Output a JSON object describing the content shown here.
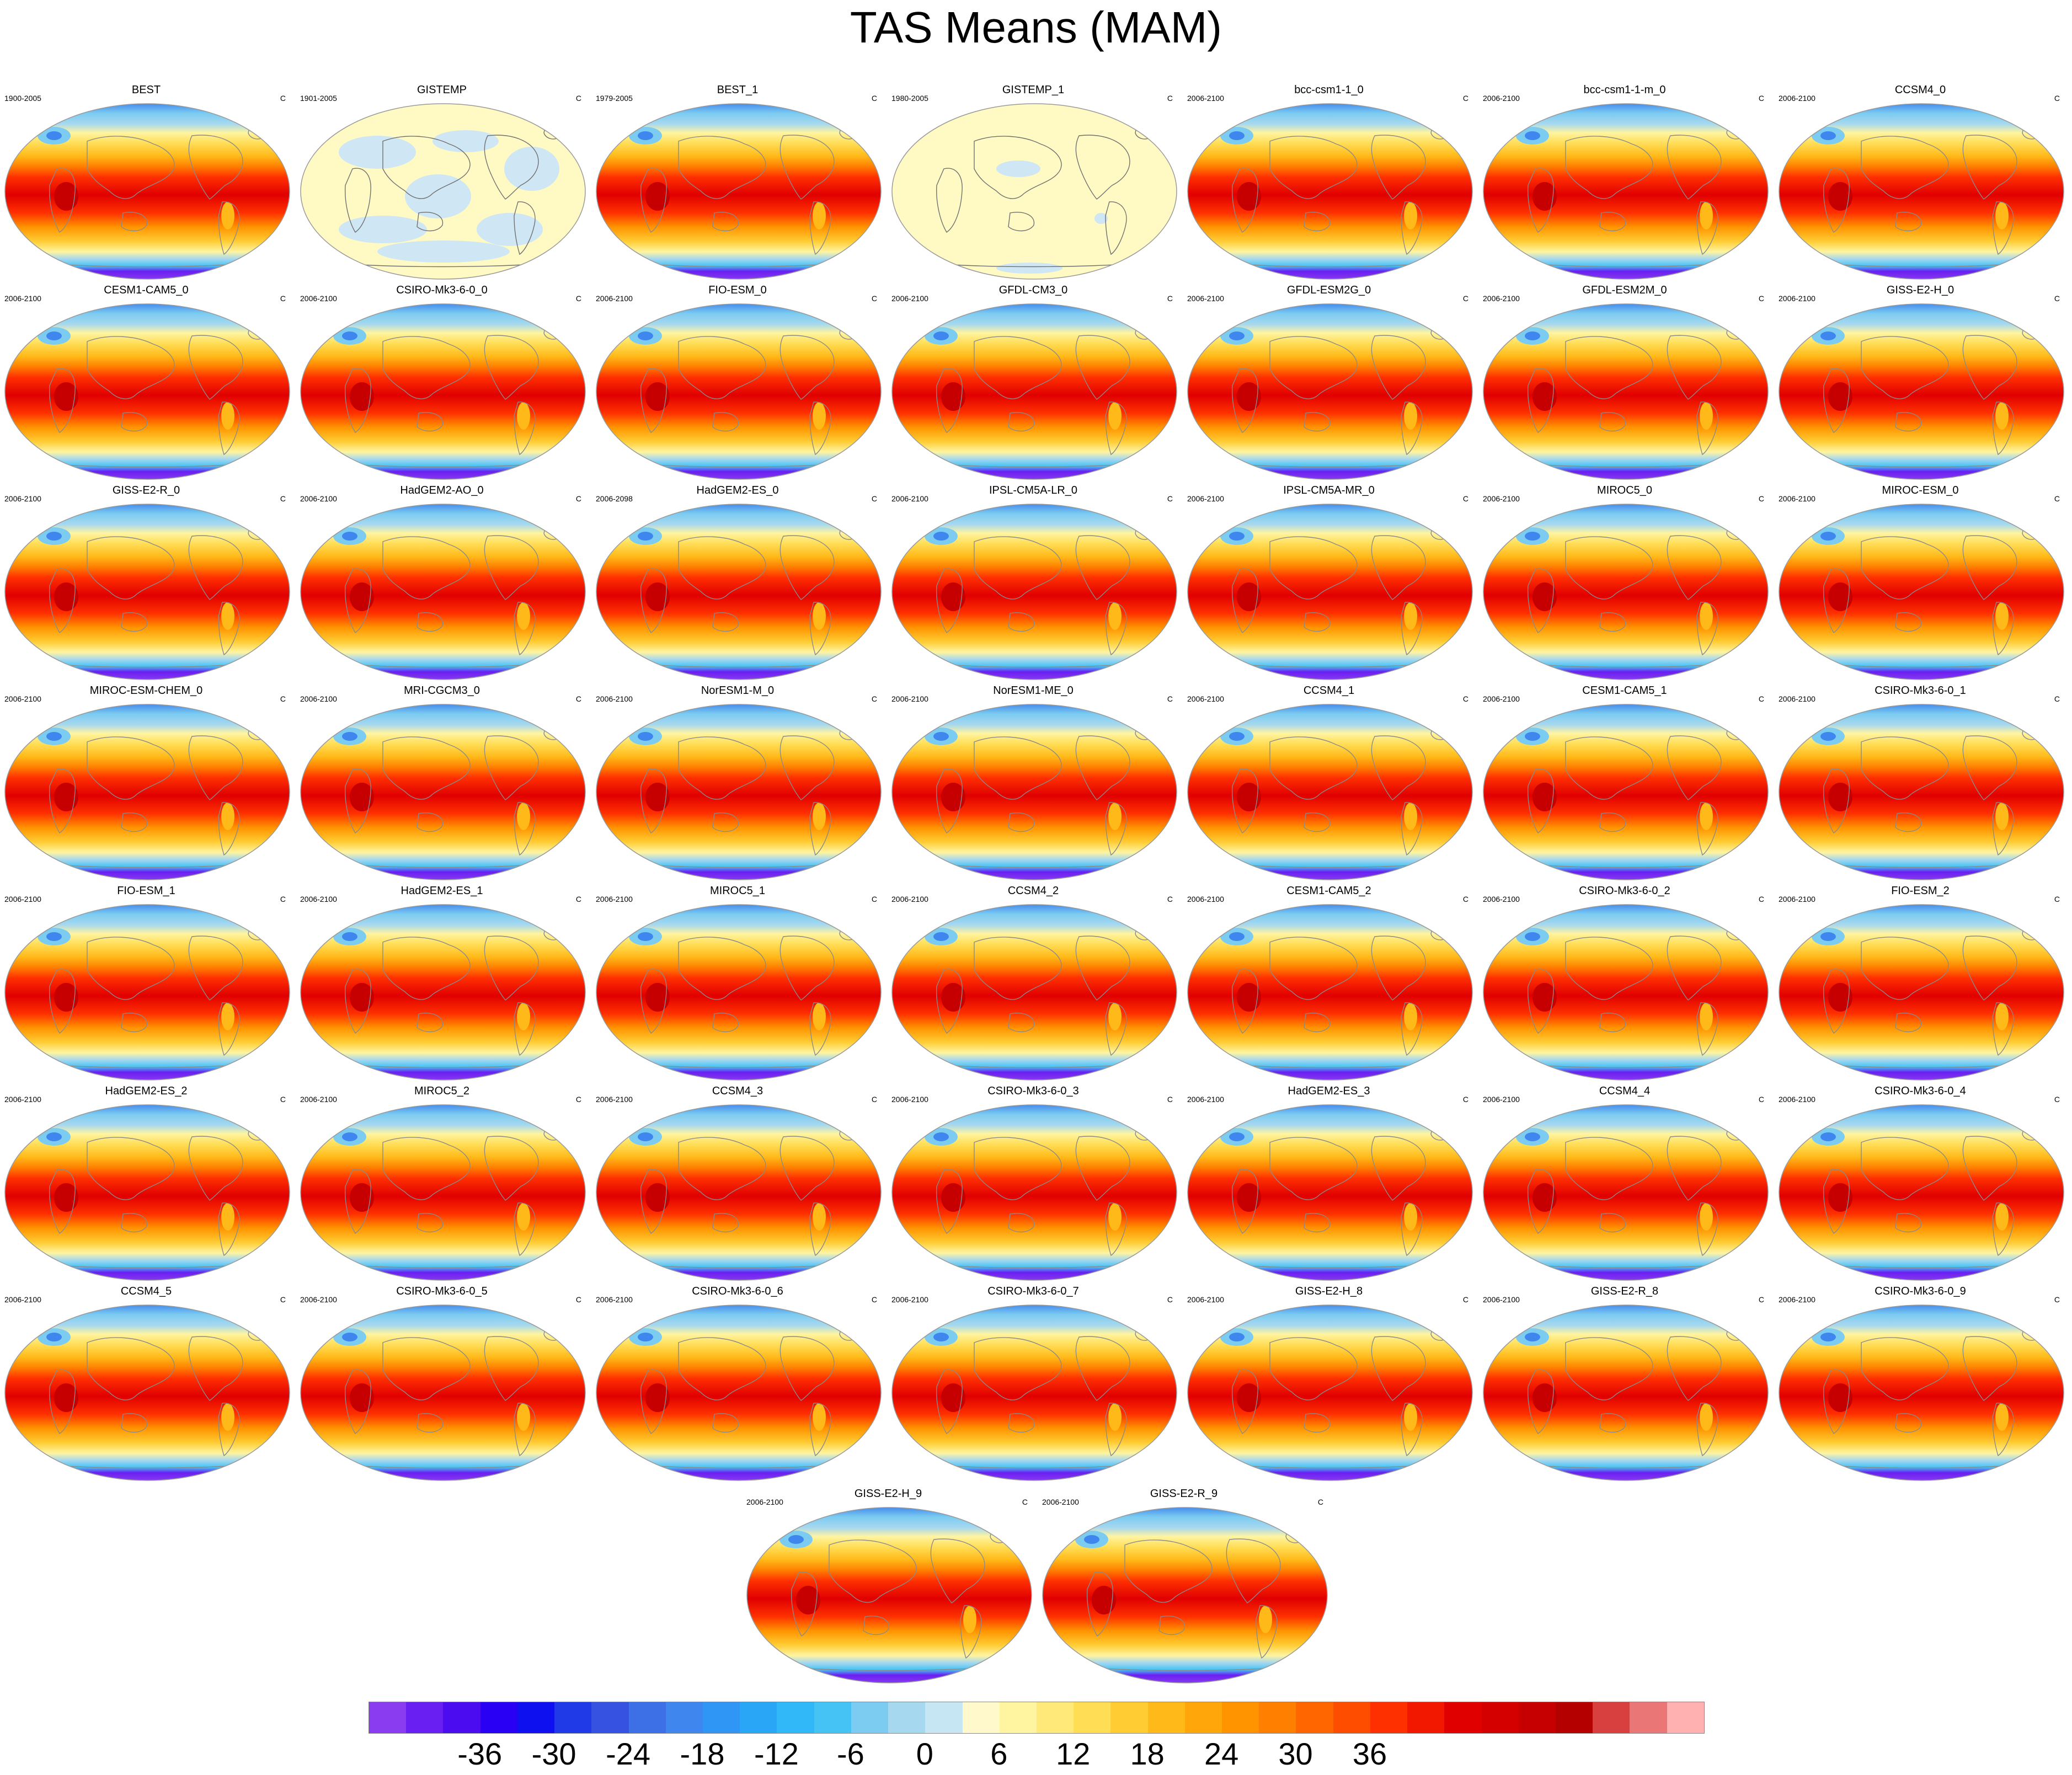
{
  "title": "TAS Means (MAM)",
  "unit": "C",
  "panels": [
    {
      "name": "BEST",
      "years": "1900-2005",
      "style": "model"
    },
    {
      "name": "GISTEMP",
      "years": "1901-2005",
      "style": "anom"
    },
    {
      "name": "BEST_1",
      "years": "1979-2005",
      "style": "model"
    },
    {
      "name": "GISTEMP_1",
      "years": "1980-2005",
      "style": "anom2"
    },
    {
      "name": "bcc-csm1-1_0",
      "years": "2006-2100",
      "style": "model"
    },
    {
      "name": "bcc-csm1-1-m_0",
      "years": "2006-2100",
      "style": "model"
    },
    {
      "name": "CCSM4_0",
      "years": "2006-2100",
      "style": "model"
    },
    {
      "name": "CESM1-CAM5_0",
      "years": "2006-2100",
      "style": "model"
    },
    {
      "name": "CSIRO-Mk3-6-0_0",
      "years": "2006-2100",
      "style": "model"
    },
    {
      "name": "FIO-ESM_0",
      "years": "2006-2100",
      "style": "model"
    },
    {
      "name": "GFDL-CM3_0",
      "years": "2006-2100",
      "style": "model"
    },
    {
      "name": "GFDL-ESM2G_0",
      "years": "2006-2100",
      "style": "model"
    },
    {
      "name": "GFDL-ESM2M_0",
      "years": "2006-2100",
      "style": "model"
    },
    {
      "name": "GISS-E2-H_0",
      "years": "2006-2100",
      "style": "model"
    },
    {
      "name": "GISS-E2-R_0",
      "years": "2006-2100",
      "style": "model"
    },
    {
      "name": "HadGEM2-AO_0",
      "years": "2006-2100",
      "style": "model"
    },
    {
      "name": "HadGEM2-ES_0",
      "years": "2006-2098",
      "style": "model"
    },
    {
      "name": "IPSL-CM5A-LR_0",
      "years": "2006-2100",
      "style": "model"
    },
    {
      "name": "IPSL-CM5A-MR_0",
      "years": "2006-2100",
      "style": "model"
    },
    {
      "name": "MIROC5_0",
      "years": "2006-2100",
      "style": "model"
    },
    {
      "name": "MIROC-ESM_0",
      "years": "2006-2100",
      "style": "model"
    },
    {
      "name": "MIROC-ESM-CHEM_0",
      "years": "2006-2100",
      "style": "model"
    },
    {
      "name": "MRI-CGCM3_0",
      "years": "2006-2100",
      "style": "model"
    },
    {
      "name": "NorESM1-M_0",
      "years": "2006-2100",
      "style": "model"
    },
    {
      "name": "NorESM1-ME_0",
      "years": "2006-2100",
      "style": "model"
    },
    {
      "name": "CCSM4_1",
      "years": "2006-2100",
      "style": "model"
    },
    {
      "name": "CESM1-CAM5_1",
      "years": "2006-2100",
      "style": "model"
    },
    {
      "name": "CSIRO-Mk3-6-0_1",
      "years": "2006-2100",
      "style": "model"
    },
    {
      "name": "FIO-ESM_1",
      "years": "2006-2100",
      "style": "model"
    },
    {
      "name": "HadGEM2-ES_1",
      "years": "2006-2100",
      "style": "model"
    },
    {
      "name": "MIROC5_1",
      "years": "2006-2100",
      "style": "model"
    },
    {
      "name": "CCSM4_2",
      "years": "2006-2100",
      "style": "model"
    },
    {
      "name": "CESM1-CAM5_2",
      "years": "2006-2100",
      "style": "model"
    },
    {
      "name": "CSIRO-Mk3-6-0_2",
      "years": "2006-2100",
      "style": "model"
    },
    {
      "name": "FIO-ESM_2",
      "years": "2006-2100",
      "style": "model"
    },
    {
      "name": "HadGEM2-ES_2",
      "years": "2006-2100",
      "style": "model"
    },
    {
      "name": "MIROC5_2",
      "years": "2006-2100",
      "style": "model"
    },
    {
      "name": "CCSM4_3",
      "years": "2006-2100",
      "style": "model"
    },
    {
      "name": "CSIRO-Mk3-6-0_3",
      "years": "2006-2100",
      "style": "model"
    },
    {
      "name": "HadGEM2-ES_3",
      "years": "2006-2100",
      "style": "model"
    },
    {
      "name": "CCSM4_4",
      "years": "2006-2100",
      "style": "model"
    },
    {
      "name": "CSIRO-Mk3-6-0_4",
      "years": "2006-2100",
      "style": "model"
    },
    {
      "name": "CCSM4_5",
      "years": "2006-2100",
      "style": "model"
    },
    {
      "name": "CSIRO-Mk3-6-0_5",
      "years": "2006-2100",
      "style": "model"
    },
    {
      "name": "CSIRO-Mk3-6-0_6",
      "years": "2006-2100",
      "style": "model"
    },
    {
      "name": "CSIRO-Mk3-6-0_7",
      "years": "2006-2100",
      "style": "model"
    },
    {
      "name": "GISS-E2-H_8",
      "years": "2006-2100",
      "style": "model"
    },
    {
      "name": "GISS-E2-R_8",
      "years": "2006-2100",
      "style": "model"
    },
    {
      "name": "CSIRO-Mk3-6-0_9",
      "years": "2006-2100",
      "style": "model"
    },
    {
      "name": "GISS-E2-H_9",
      "years": "2006-2100",
      "style": "model"
    },
    {
      "name": "GISS-E2-R_9",
      "years": "2006-2100",
      "style": "model"
    }
  ],
  "colorbar": {
    "colors": [
      "#8a3cf0",
      "#6a1ff2",
      "#4b0df0",
      "#2a00f5",
      "#0f10f0",
      "#1f3ae6",
      "#3552e0",
      "#3d6fe6",
      "#3f86ee",
      "#2f96f5",
      "#2aa6f7",
      "#30b8f8",
      "#45c3f4",
      "#7ccbf0",
      "#a6d8ef",
      "#c6e6f3",
      "#fff9cc",
      "#fff4a0",
      "#ffe979",
      "#ffdd55",
      "#ffcc33",
      "#ffba1a",
      "#ffa70a",
      "#ff9300",
      "#ff7f00",
      "#ff6600",
      "#ff4d00",
      "#ff3000",
      "#f21800",
      "#e00000",
      "#d40000",
      "#c60000",
      "#b50000",
      "#d84040",
      "#eb7676",
      "#ffb0b0"
    ],
    "ticks": [
      "-36",
      "-30",
      "-24",
      "-18",
      "-12",
      "-6",
      "0",
      "6",
      "12",
      "18",
      "24",
      "30",
      "36"
    ],
    "tick_positions": [
      2,
      4,
      6,
      8,
      10,
      12,
      14,
      16,
      18,
      20,
      22,
      24,
      26
    ]
  }
}
